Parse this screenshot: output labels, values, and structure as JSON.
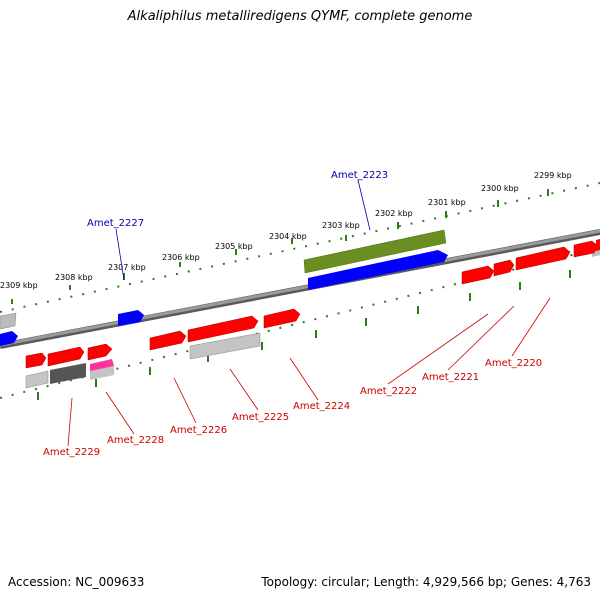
{
  "title": "Alkaliphilus metalliredigens QYMF, complete genome",
  "accession": "Accession: NC_009633",
  "topology": "Topology: circular; Length: 4,929,566 bp; Genes: 4,763",
  "colors": {
    "forward": "#ff0000",
    "reverse": "#0000ff",
    "rna": "#ff3399",
    "gray": "#b3b3b3",
    "darkgray": "#555555",
    "olive": "#6b8e23",
    "ticks": "#2e7d1a",
    "forward_label": "#cc0000",
    "reverse_label": "#0000aa"
  },
  "kbp_labels": [
    "2309 kbp",
    "2308 kbp",
    "2307 kbp",
    "2306 kbp",
    "2305 kbp",
    "2304 kbp",
    "2303 kbp",
    "2302 kbp",
    "2301 kbp",
    "2300 kbp",
    "2299 kbp"
  ],
  "gene_labels": [
    {
      "text": "Amet_2223",
      "strand": "reverse"
    },
    {
      "text": "Amet_2227",
      "strand": "reverse"
    },
    {
      "text": "Amet_2229",
      "strand": "forward"
    },
    {
      "text": "Amet_2228",
      "strand": "forward"
    },
    {
      "text": "Amet_2226",
      "strand": "forward"
    },
    {
      "text": "Amet_2225",
      "strand": "forward"
    },
    {
      "text": "Amet_2224",
      "strand": "forward"
    },
    {
      "text": "Amet_2222",
      "strand": "forward"
    },
    {
      "text": "Amet_2221",
      "strand": "forward"
    },
    {
      "text": "Amet_2220",
      "strand": "forward"
    }
  ]
}
